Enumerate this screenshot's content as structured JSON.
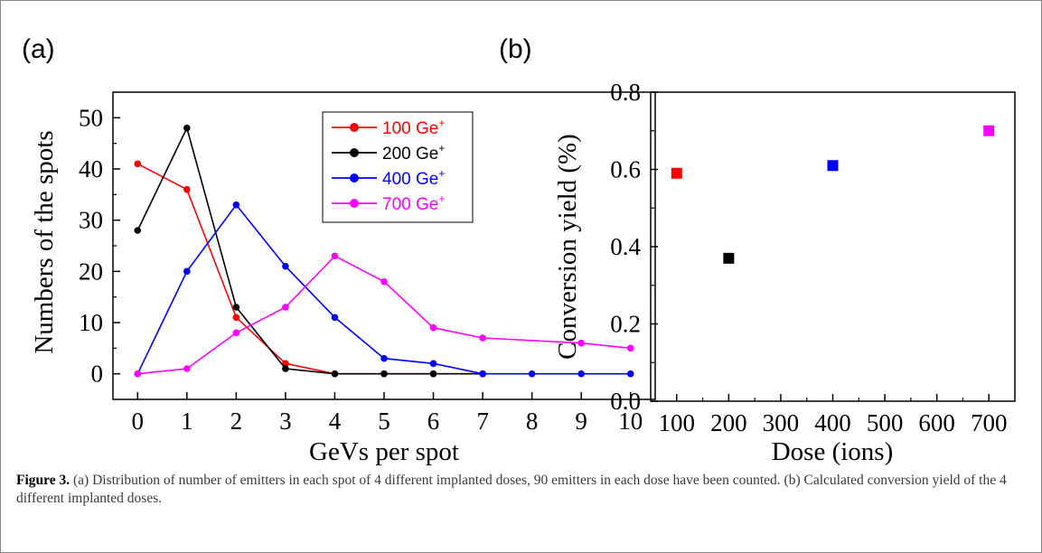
{
  "figure": {
    "caption_label": "Figure 3.",
    "caption_text": " (a) Distribution of number of emitters in each spot of 4 different implanted doses, 90 emitters in each dose have been counted. (b) Calculated conversion yield of the 4 different implanted doses."
  },
  "chart_data": [
    {
      "panel_label": "(a)",
      "type": "line",
      "xlabel": "GeVs per spot",
      "ylabel": "Numbers of the spots",
      "xlim": [
        -0.5,
        10.5
      ],
      "ylim": [
        -5,
        55
      ],
      "xticks": [
        0,
        1,
        2,
        3,
        4,
        5,
        6,
        7,
        8,
        9,
        10
      ],
      "yticks": [
        0,
        10,
        20,
        30,
        40,
        50
      ],
      "grid": false,
      "legend_position": "top-right",
      "series": [
        {
          "name": "100 Ge",
          "superscript": "+",
          "color": "#ff0000",
          "x": [
            0,
            1,
            2,
            3,
            4,
            5,
            6,
            7
          ],
          "y": [
            41,
            36,
            11,
            2,
            0,
            0,
            0,
            0
          ]
        },
        {
          "name": "200 Ge",
          "superscript": "+",
          "color": "#000000",
          "x": [
            0,
            1,
            2,
            3,
            4,
            5,
            6,
            7
          ],
          "y": [
            28,
            48,
            13,
            1,
            0,
            0,
            0,
            0
          ]
        },
        {
          "name": "400 Ge",
          "superscript": "+",
          "color": "#0000ff",
          "x": [
            0,
            1,
            2,
            3,
            4,
            5,
            6,
            7,
            8,
            9,
            10
          ],
          "y": [
            0,
            20,
            33,
            21,
            11,
            3,
            2,
            0,
            0,
            0,
            0
          ]
        },
        {
          "name": "700 Ge",
          "superscript": "+",
          "color": "#ff00ff",
          "x": [
            0,
            1,
            2,
            3,
            4,
            5,
            6,
            7,
            9,
            10
          ],
          "y": [
            0,
            1,
            8,
            13,
            23,
            18,
            9,
            7,
            6,
            5
          ]
        }
      ]
    },
    {
      "panel_label": "(b)",
      "type": "scatter",
      "xlabel": "Dose (ions)",
      "ylabel": "Conversion yield (%)",
      "xlim": [
        50,
        750
      ],
      "ylim": [
        0.0,
        0.8
      ],
      "xticks": [
        100,
        200,
        300,
        400,
        500,
        600,
        700
      ],
      "yticks": [
        "0.0",
        "0.2",
        "0.4",
        "0.6",
        "0.8"
      ],
      "grid": false,
      "points": [
        {
          "x": 100,
          "y": 0.59,
          "color": "#ff0000"
        },
        {
          "x": 200,
          "y": 0.37,
          "color": "#000000"
        },
        {
          "x": 400,
          "y": 0.61,
          "color": "#0000ff"
        },
        {
          "x": 700,
          "y": 0.7,
          "color": "#ff00ff"
        }
      ]
    }
  ]
}
